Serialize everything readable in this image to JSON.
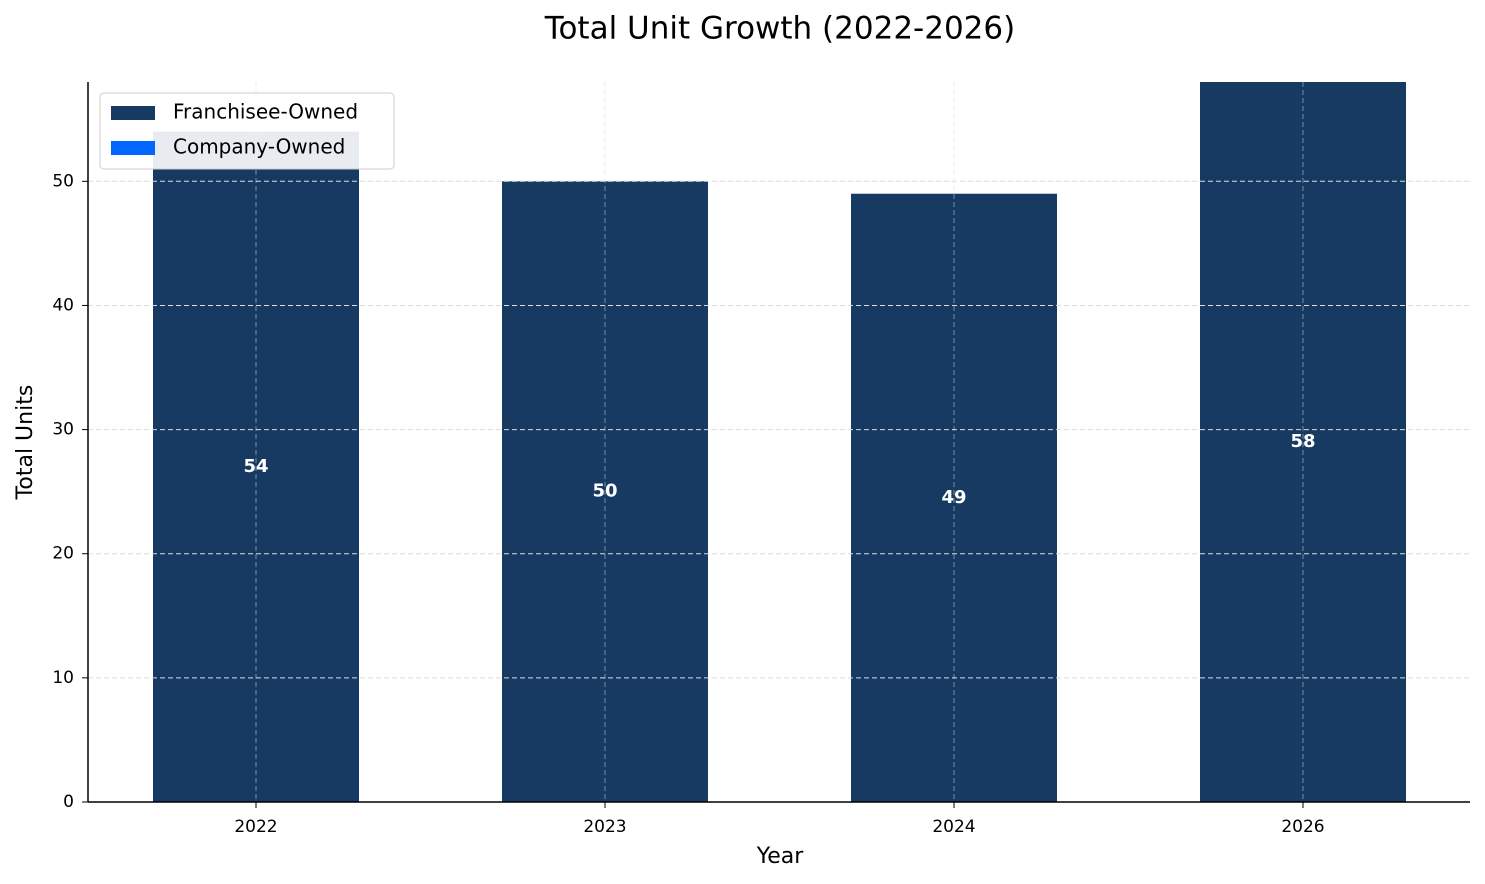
{
  "chart_data": {
    "type": "stacked_bar",
    "title": "Total Unit Growth (2022-2026)",
    "x_label": "Year",
    "y_label": "Total Units",
    "categories": [
      "2022",
      "2023",
      "2024",
      "2026"
    ],
    "series": [
      {
        "name": "Franchisee-Owned",
        "color": "#163a61",
        "values": [
          54,
          50,
          49,
          58
        ]
      },
      {
        "name": "Company-Owned",
        "color": "#0066ff",
        "values": [
          0,
          0,
          0,
          0
        ]
      }
    ],
    "ylim": [
      0,
      58
    ],
    "yticks": [
      0,
      10,
      20,
      30,
      40,
      50
    ],
    "grid": true,
    "legend": "upper left"
  }
}
